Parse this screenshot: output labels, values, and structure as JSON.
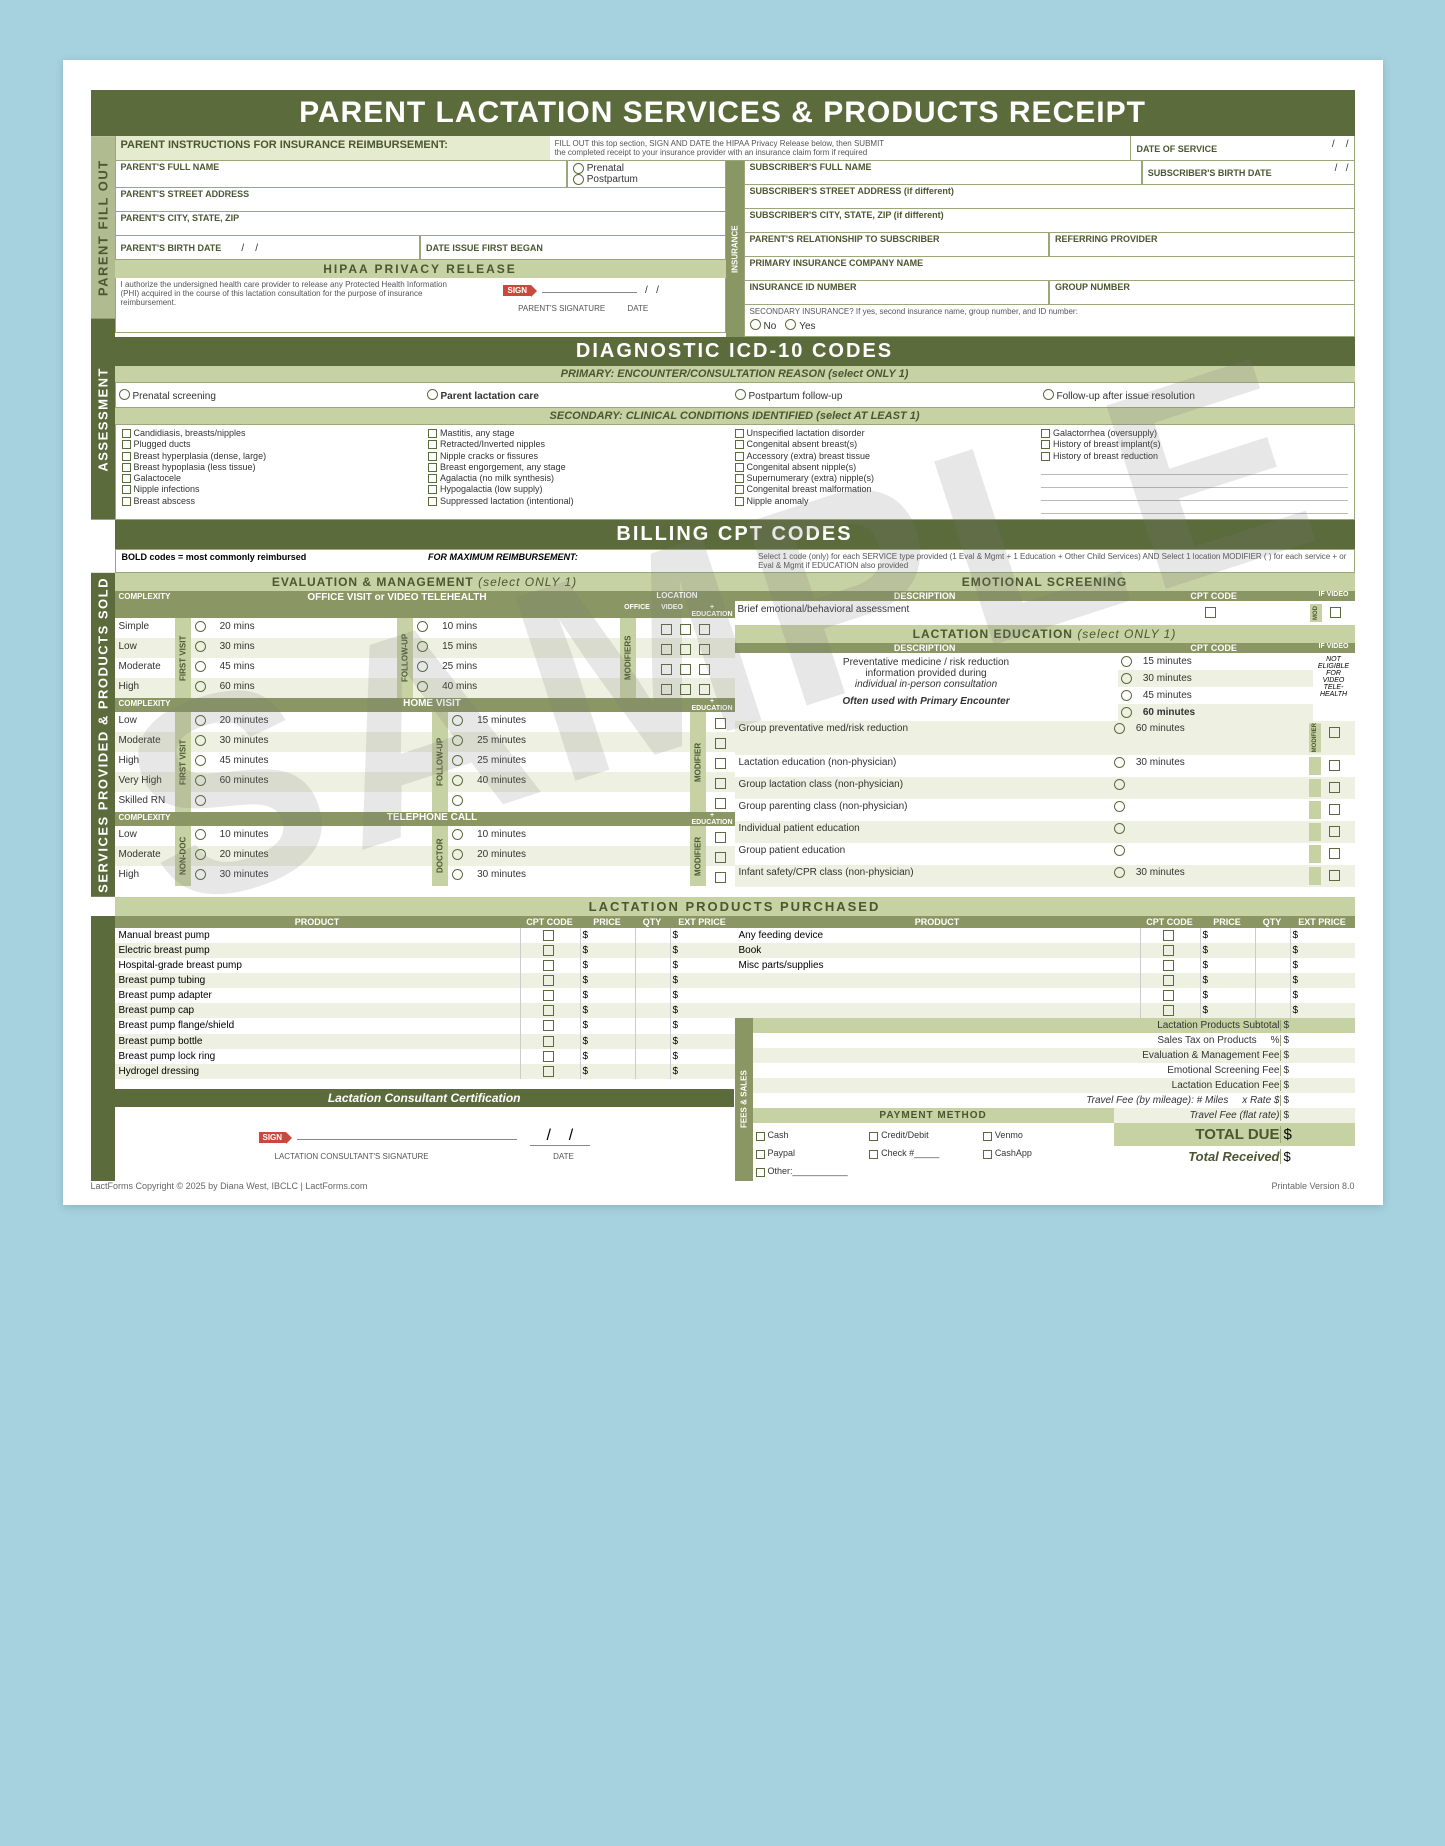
{
  "title": "PARENT LACTATION SERVICES & PRODUCTS RECEIPT",
  "watermark": "SAMPLE",
  "sidelabels": {
    "assessment": "ASSESSMENT",
    "parent_fill": "PARENT FILL OUT",
    "services": "SERVICES PROVIDED & PRODUCTS SOLD",
    "fees": "FEES & SALES",
    "insurance": "INSURANCE"
  },
  "parent_instructions": {
    "heading": "PARENT INSTRUCTIONS FOR INSURANCE REIMBURSEMENT:",
    "text1": "FILL OUT this top section, SIGN AND DATE the HIPAA Privacy Release below, then SUBMIT",
    "text2": "the completed receipt to your insurance provider with an insurance claim form if required"
  },
  "parent_fields": {
    "full_name": "PARENT'S FULL NAME",
    "street": "PARENT'S STREET ADDRESS",
    "city": "PARENT'S CITY, STATE, ZIP",
    "birth": "PARENT'S BIRTH DATE",
    "issue": "DATE ISSUE FIRST BEGAN",
    "prenatal": "Prenatal",
    "postpartum": "Postpartum",
    "date_service": "DATE OF SERVICE"
  },
  "hipaa": {
    "heading": "HIPAA PRIVACY RELEASE",
    "text": "I authorize the undersigned health care provider to release any Protected Health Information (PHI) acquired in the course of this lactation consultation for the purpose of insurance reimbursement.",
    "sig": "PARENT'S SIGNATURE",
    "date": "DATE",
    "sign": "SIGN"
  },
  "insurance_fields": {
    "sub_name": "SUBSCRIBER'S FULL NAME",
    "sub_birth": "SUBSCRIBER'S BIRTH DATE",
    "sub_street": "SUBSCRIBER'S STREET ADDRESS (if different)",
    "sub_city": "SUBSCRIBER'S CITY, STATE, ZIP (if different)",
    "relationship": "PARENT'S RELATIONSHIP TO SUBSCRIBER",
    "referring": "REFERRING PROVIDER",
    "company": "PRIMARY INSURANCE COMPANY NAME",
    "id": "INSURANCE ID NUMBER",
    "group": "GROUP NUMBER",
    "secondary": "SECONDARY INSURANCE?  If yes, second insurance name, group number, and ID number:",
    "no": "No",
    "yes": "Yes"
  },
  "icd": {
    "heading": "DIAGNOSTIC ICD-10 CODES",
    "primary_label": "PRIMARY:  ENCOUNTER/CONSULTATION REASON  (select ONLY 1)",
    "primary_options": [
      "Prenatal screening",
      "Parent lactation care",
      "Postpartum follow-up",
      "Follow-up after issue resolution"
    ],
    "secondary_label": "SECONDARY:  CLINICAL CONDITIONS IDENTIFIED  (select AT LEAST 1)",
    "col1": [
      "Candidiasis, breasts/nipples",
      "Plugged ducts",
      "Breast hyperplasia (dense, large)",
      "Breast hypoplasia (less tissue)",
      "Galactocele",
      "Nipple infections",
      "Breast abscess"
    ],
    "col2": [
      "Mastitis, any stage",
      "Retracted/Inverted nipples",
      "Nipple cracks or fissures",
      "Breast engorgement, any stage",
      "Agalactia (no milk synthesis)",
      "Hypogalactia (low supply)",
      "Suppressed lactation (intentional)"
    ],
    "col3": [
      "Unspecified lactation disorder",
      "Congenital absent breast(s)",
      "Accessory (extra) breast tissue",
      "Congenital absent nipple(s)",
      "Supernumerary (extra) nipple(s)",
      "Congenital breast malformation",
      "Nipple anomaly"
    ],
    "col4": [
      "Galactorrhea (oversupply)",
      "History of breast implant(s)",
      "History of breast reduction"
    ]
  },
  "cpt": {
    "heading": "BILLING CPT CODES",
    "note1": "BOLD codes = most commonly reimbursed",
    "note2": "FOR MAXIMUM REIMBURSEMENT:",
    "note3": "Select 1 code (only) for each SERVICE type provided (1 Eval & Mgmt + 1 Education + Other Child Services) AND Select 1 location MODIFIER (         ) for each service +        or Eval & Mgmt if EDUCATION also provided"
  },
  "eval": {
    "heading": "EVALUATION & MANAGEMENT",
    "select": "(select ONLY 1)",
    "office": "OFFICE VISIT or VIDEO TELEHEALTH",
    "home": "HOME VISIT",
    "tele": "TELEPHONE CALL",
    "complexity": "COMPLEXITY",
    "location": "LOCATION",
    "office_h": "OFFICE",
    "video_h": "VIDEO",
    "education_h": "+ EDUCATION",
    "modifiers": "MODIFIERS",
    "modifier": "MODIFIER",
    "first_visit": "FIRST VISIT",
    "follow_up": "FOLLOW-UP",
    "non_doc": "NON-DOC",
    "doctor": "DOCTOR",
    "office_rows": [
      {
        "c": "Simple",
        "t1": "20 mins",
        "t2": "10 mins"
      },
      {
        "c": "Low",
        "t1": "30 mins",
        "t2": "15 mins"
      },
      {
        "c": "Moderate",
        "t1": "45 mins",
        "t2": "25 mins"
      },
      {
        "c": "High",
        "t1": "60 mins",
        "t2": "40 mins"
      }
    ],
    "home_rows": [
      {
        "c": "Low",
        "t1": "20 minutes",
        "t2": "15 minutes"
      },
      {
        "c": "Moderate",
        "t1": "30 minutes",
        "t2": "25 minutes"
      },
      {
        "c": "High",
        "t1": "45 minutes",
        "t2": "25 minutes"
      },
      {
        "c": "Very High",
        "t1": "60 minutes",
        "t2": "40 minutes"
      },
      {
        "c": "Skilled RN",
        "t1": "",
        "t2": ""
      }
    ],
    "tele_rows": [
      {
        "c": "Low",
        "t1": "10 minutes",
        "t2": "10 minutes"
      },
      {
        "c": "Moderate",
        "t1": "20 minutes",
        "t2": "20 minutes"
      },
      {
        "c": "High",
        "t1": "30 minutes",
        "t2": "30 minutes"
      }
    ]
  },
  "emotional": {
    "heading": "EMOTIONAL SCREENING",
    "desc_h": "DESCRIPTION",
    "cpt_h": "CPT CODE",
    "ifvideo": "IF VIDEO",
    "mod": "MOD",
    "row": "Brief emotional/behavioral assessment"
  },
  "education": {
    "heading": "LACTATION EDUCATION",
    "select": "(select ONLY 1)",
    "desc_h": "DESCRIPTION",
    "cpt_h": "CPT CODE",
    "ifvideo": "IF VIDEO",
    "not_eligible": "NOT ELIGIBLE FOR VIDEO TELE-HEALTH",
    "prevent1": "Preventative medicine / risk reduction",
    "prevent2": "information provided during",
    "prevent3": "individual in-person consultation",
    "often": "Often used with Primary Encounter",
    "times": [
      "15 minutes",
      "30 minutes",
      "45 minutes",
      "60 minutes"
    ],
    "rows": [
      {
        "d": "Group preventative med/risk reduction",
        "t": "60 minutes"
      },
      {
        "d": "Lactation education (non-physician)",
        "t": "30 minutes"
      },
      {
        "d": "Group lactation class (non-physician)",
        "t": ""
      },
      {
        "d": "Group parenting class (non-physician)",
        "t": ""
      },
      {
        "d": "Individual patient education",
        "t": ""
      },
      {
        "d": "Group patient education",
        "t": ""
      },
      {
        "d": "Infant safety/CPR class (non-physician)",
        "t": "30 minutes"
      }
    ]
  },
  "products": {
    "heading": "LACTATION PRODUCTS PURCHASED",
    "cols": [
      "PRODUCT",
      "CPT CODE",
      "PRICE",
      "QTY",
      "EXT PRICE"
    ],
    "left": [
      "Manual breast pump",
      "Electric breast pump",
      "Hospital-grade breast pump",
      "Breast pump tubing",
      "Breast pump adapter",
      "Breast pump cap",
      "Breast pump flange/shield",
      "Breast pump bottle",
      "Breast pump lock ring",
      "Hydrogel dressing"
    ],
    "right": [
      "Any feeding device",
      "Book",
      "Misc parts/supplies",
      "",
      "",
      ""
    ]
  },
  "cert": {
    "heading": "Lactation Consultant Certification",
    "sig": "LACTATION CONSULTANT'S SIGNATURE",
    "date": "DATE",
    "sign": "SIGN"
  },
  "fees": {
    "subtotal": "Lactation Products Subtotal",
    "tax": "Sales Tax on Products",
    "pct": "%",
    "eval_fee": "Evaluation & Management Fee",
    "emo_fee": "Emotional Screening Fee",
    "edu_fee": "Lactation Education Fee",
    "travel_mile": "Travel Fee (by mileage):  # Miles",
    "rate": "x Rate $",
    "travel_flat": "Travel Fee (flat rate)",
    "payment_h": "PAYMENT METHOD",
    "methods": [
      "Cash",
      "Credit/Debit",
      "Venmo",
      "Paypal",
      "Check #_____",
      "CashApp",
      "Other:___________"
    ],
    "total_due": "TOTAL DUE",
    "total_recv": "Total Received",
    "dollar": "$"
  },
  "footer": {
    "left": "LactForms  Copyright © 2025 by Diana West, IBCLC  |  LactForms.com",
    "right": "Printable Version 8.0"
  }
}
